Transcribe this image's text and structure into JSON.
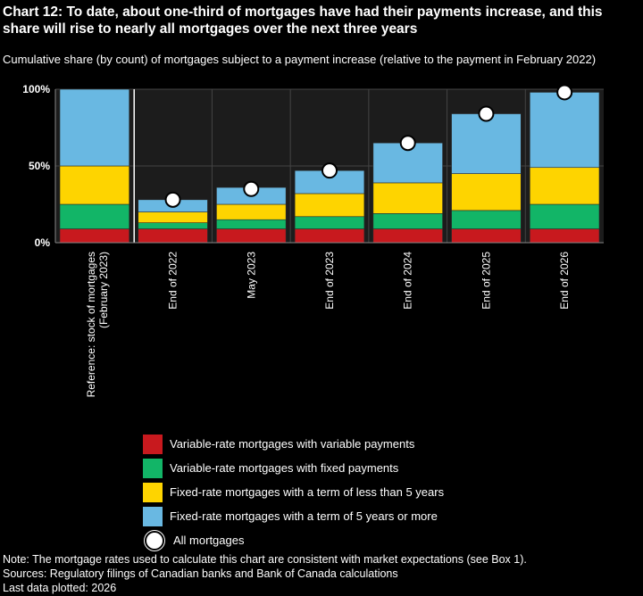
{
  "chart_data": {
    "type": "bar",
    "stacked": true,
    "title": "Chart 12: To date, about one-third of mortgages have had their payments increase, and this share will rise to nearly all mortgages over the next three years",
    "subtitle": "Cumulative share (by count) of mortgages subject to a payment increase (relative to the payment in February 2022)",
    "categories": [
      "Reference: stock of mortgages (February 2023)",
      "End of 2022",
      "May 2023",
      "End of 2023",
      "End of 2024",
      "End of 2025",
      "End of 2026"
    ],
    "series": [
      {
        "name": "Variable-rate mortgages with variable payments",
        "color": "#c8191e",
        "values": [
          9,
          9,
          9,
          9,
          9,
          9,
          9
        ]
      },
      {
        "name": "Variable-rate mortgages with fixed payments",
        "color": "#12b567",
        "values": [
          16,
          4,
          6,
          8,
          10,
          12,
          16
        ]
      },
      {
        "name": "Fixed-rate mortgages with a term of less than 5 years",
        "color": "#fed400",
        "values": [
          25,
          7,
          10,
          15,
          20,
          24,
          24
        ]
      },
      {
        "name": "Fixed-rate mortgages with a term of 5 years or more",
        "color": "#69b8e2",
        "values": [
          50,
          8,
          11,
          15,
          26,
          39,
          49
        ]
      }
    ],
    "markers": {
      "name": "All mortgages",
      "values": [
        null,
        28,
        35,
        47,
        65,
        84,
        98
      ]
    },
    "ylim": [
      0,
      100
    ],
    "yticks": [
      "0%",
      "50%",
      "100%"
    ],
    "grid": true,
    "legend_position": "bottom"
  },
  "notes": {
    "note": "Note: The mortgage rates used to calculate this chart are consistent with market expectations (see Box 1).",
    "sources": "Sources: Regulatory filings of Canadian banks and Bank of Canada calculations",
    "last_data": "Last data plotted: 2026"
  }
}
